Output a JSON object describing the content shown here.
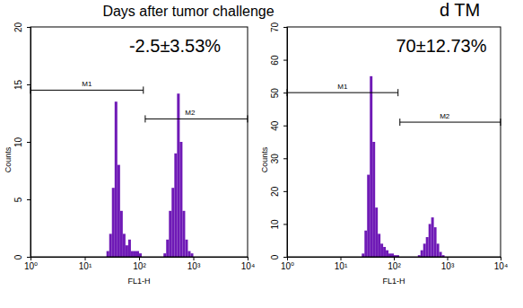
{
  "chart_data": [
    {
      "type": "histogram",
      "title": "Days after tumor challenge",
      "log": "x",
      "x_label": "FL1-H",
      "y_label": "Counts",
      "color": "#6f1ab6",
      "annotations": [
        {
          "text": "-2.5±3.53%"
        }
      ],
      "bins": [
        15.8,
        17.8,
        20.0,
        22.4,
        25.1,
        28.2,
        31.6,
        35.5,
        39.8,
        44.7,
        50.1,
        56.2,
        63.1,
        70.8,
        79.4,
        89.1,
        100,
        112,
        126,
        141,
        158,
        178,
        200,
        224,
        251,
        282,
        316,
        355,
        398,
        447,
        501,
        562,
        631,
        708,
        794,
        891,
        1000,
        1122,
        1259,
        1413,
        1585
      ],
      "counts": [
        0,
        0,
        0,
        0,
        0.5,
        2,
        6,
        13.5,
        8,
        4,
        2,
        1,
        1.5,
        0.5,
        0.5,
        0.5,
        0.3,
        0,
        0,
        0,
        0,
        0,
        0,
        0,
        0,
        0.3,
        1.5,
        4,
        6,
        9,
        14.2,
        10,
        4,
        1.5,
        0.5,
        0.3,
        0,
        0,
        0,
        0
      ],
      "gates": [
        {
          "label": "M1",
          "start": 1,
          "end": 120,
          "y": 14.5
        },
        {
          "label": "M2",
          "start": 130,
          "end": 10000,
          "y": 12
        }
      ],
      "xlim": [
        1,
        10000
      ],
      "xticks": [
        {
          "value": 1,
          "label": "10⁰"
        },
        {
          "value": 10,
          "label": "10¹"
        },
        {
          "value": 100,
          "label": "10²"
        },
        {
          "value": 1000,
          "label": "10³"
        },
        {
          "value": 10000,
          "label": "10⁴"
        }
      ],
      "ylim": [
        0,
        20
      ],
      "yticks": [
        0,
        5,
        10,
        15,
        20
      ]
    },
    {
      "type": "histogram",
      "title": "d TM",
      "log": "x",
      "x_label": "FL1-H",
      "y_label": "Counts",
      "color": "#6f1ab6",
      "annotations": [
        {
          "text": "70±12.73%"
        }
      ],
      "bins": [
        15.8,
        17.8,
        20.0,
        22.4,
        25.1,
        28.2,
        31.6,
        35.5,
        39.8,
        44.7,
        50.1,
        56.2,
        63.1,
        70.8,
        79.4,
        89.1,
        100,
        112,
        126,
        141,
        158,
        178,
        200,
        224,
        251,
        282,
        316,
        355,
        398,
        447,
        501,
        562,
        631,
        708,
        794,
        891,
        1000,
        1122,
        1259,
        1413,
        1585
      ],
      "counts": [
        0,
        0,
        0,
        0,
        1,
        8,
        25,
        55,
        35,
        15,
        7,
        4,
        3,
        2,
        1,
        1,
        0.5,
        0.5,
        0,
        0,
        0,
        0,
        0,
        0,
        0,
        0.5,
        2,
        4,
        6,
        10,
        12,
        9,
        4,
        1.5,
        0.5,
        0,
        0,
        0,
        0,
        0
      ],
      "gates": [
        {
          "label": "M1",
          "start": 1,
          "end": 120,
          "y": 50
        },
        {
          "label": "M2",
          "start": 130,
          "end": 10000,
          "y": 41
        }
      ],
      "xlim": [
        1,
        10000
      ],
      "xticks": [
        {
          "value": 1,
          "label": "10⁰"
        },
        {
          "value": 10,
          "label": "10¹"
        },
        {
          "value": 100,
          "label": "10²"
        },
        {
          "value": 1000,
          "label": "10³"
        },
        {
          "value": 10000,
          "label": "10⁴"
        }
      ],
      "ylim": [
        0,
        70
      ],
      "yticks": [
        0,
        10,
        20,
        30,
        40,
        50,
        60,
        70
      ]
    }
  ]
}
